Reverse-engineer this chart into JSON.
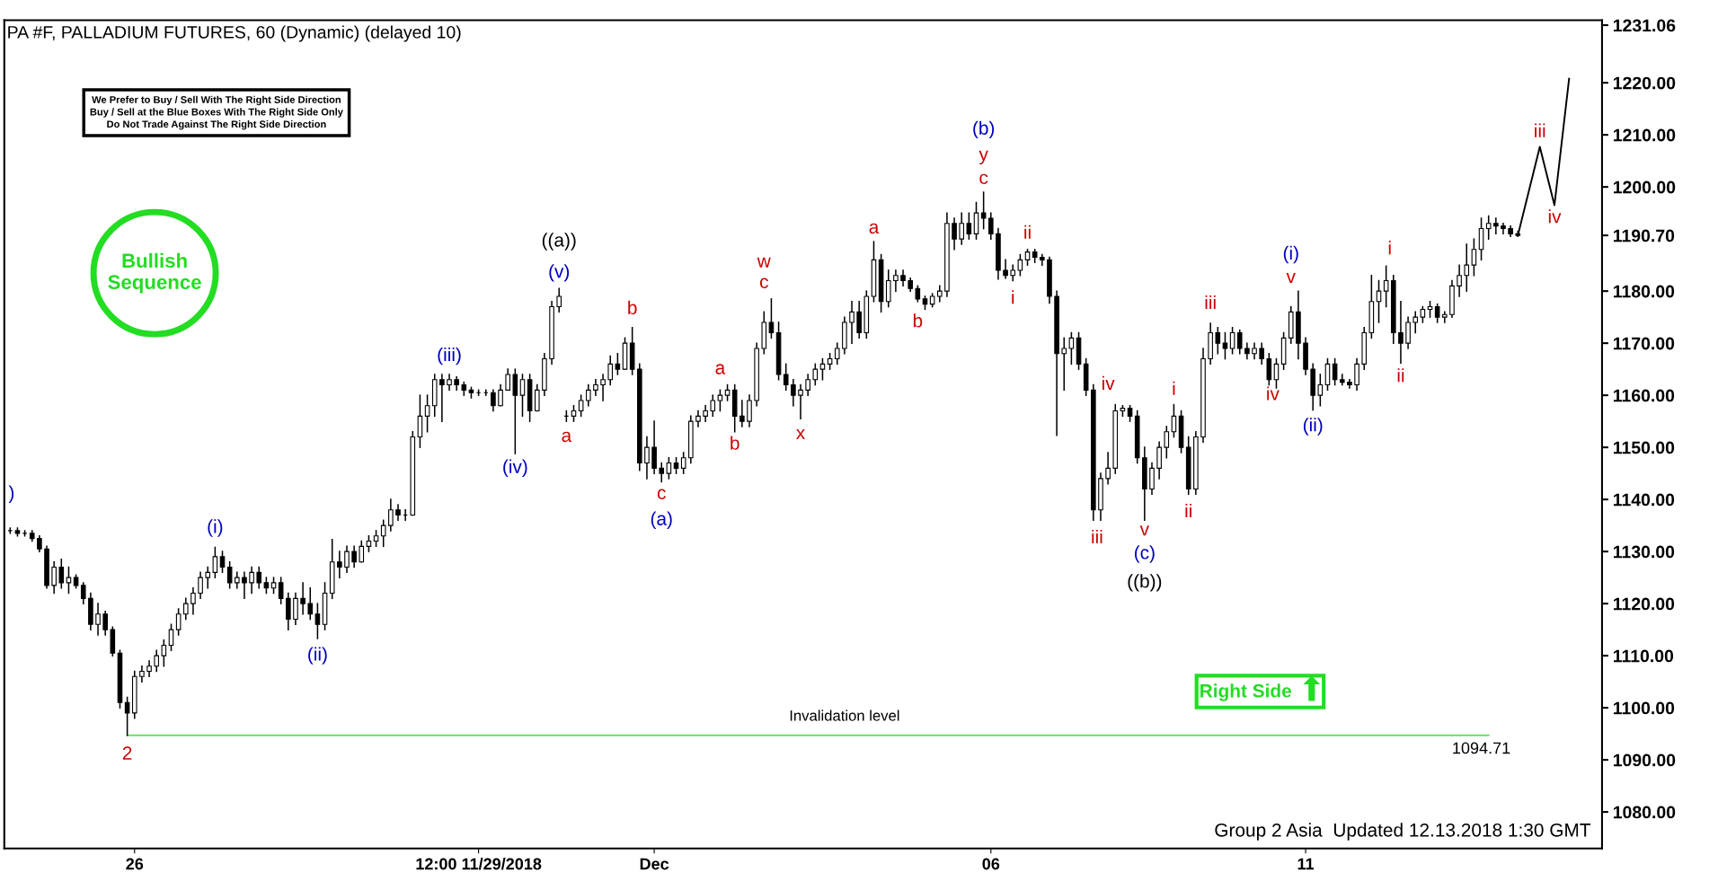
{
  "chart_data": {
    "type": "candlestick",
    "title": "PA #F, PALLADIUM FUTURES, 60 (Dynamic) (delayed 10)",
    "color": "#000000",
    "categories": [
      null,
      null,
      null,
      null,
      null,
      null,
      null,
      null,
      null,
      null,
      null,
      null,
      null,
      null,
      null,
      null,
      null,
      "26",
      null,
      null,
      null,
      null,
      null,
      null,
      null,
      null,
      null,
      null,
      null,
      null,
      null,
      null,
      null,
      null,
      null,
      null,
      null,
      null,
      null,
      null,
      null,
      null,
      null,
      null,
      null,
      null,
      null,
      null,
      null,
      null,
      null,
      null,
      null,
      null,
      null,
      null,
      null,
      null,
      null,
      null,
      null,
      null,
      null,
      null,
      "12:00 11/29/2018",
      null,
      null,
      null,
      null,
      null,
      null,
      null,
      null,
      null,
      null,
      null,
      null,
      null,
      null,
      null,
      null,
      null,
      null,
      null,
      null,
      null,
      null,
      null,
      "Dec",
      null,
      null,
      null,
      null,
      null,
      null,
      null,
      null,
      null,
      null,
      null,
      null,
      null,
      null,
      null,
      null,
      null,
      null,
      null,
      null,
      null,
      null,
      null,
      null,
      null,
      null,
      null,
      null,
      null,
      null,
      null,
      null,
      null,
      null,
      null,
      null,
      null,
      null,
      null,
      null,
      null,
      null,
      null,
      null,
      null,
      "06",
      null,
      null,
      null,
      null,
      null,
      null,
      null,
      null,
      null,
      null,
      null,
      null,
      null,
      null,
      null,
      null,
      null,
      null,
      null,
      null,
      null,
      null,
      null,
      null,
      null,
      null,
      null,
      null,
      null,
      null,
      null,
      null,
      null,
      null,
      null,
      null,
      null,
      null,
      null,
      null,
      null,
      null,
      "11",
      null,
      null,
      null,
      null,
      null,
      null,
      null,
      null,
      null,
      null,
      null,
      null,
      null,
      null,
      null,
      null,
      null,
      null,
      null,
      null,
      null,
      null,
      null,
      null,
      null,
      null,
      null,
      null,
      null,
      null,
      null,
      null,
      null,
      null,
      null,
      null,
      null,
      null,
      null,
      null
    ],
    "ohlc": [
      [
        1134,
        1134.5,
        1133.5,
        1134
      ],
      [
        1134,
        1134.5,
        1133,
        1133.5
      ],
      [
        1133.5,
        1134,
        1133,
        1133.5
      ],
      [
        1133.5,
        1134,
        1132,
        1132.5
      ],
      [
        1132.5,
        1133,
        1130,
        1130.5
      ],
      [
        1130.5,
        1131,
        1123,
        1123.5
      ],
      [
        1123.5,
        1128,
        1122,
        1127
      ],
      [
        1127,
        1128.5,
        1123,
        1124
      ],
      [
        1124,
        1127,
        1122,
        1125
      ],
      [
        1125,
        1125.5,
        1123,
        1123.5
      ],
      [
        1123.5,
        1124,
        1120,
        1121
      ],
      [
        1121,
        1122,
        1115,
        1116
      ],
      [
        1116,
        1120,
        1114,
        1118
      ],
      [
        1118,
        1118.5,
        1114,
        1115
      ],
      [
        1115,
        1115.5,
        1110,
        1110.5
      ],
      [
        1110.5,
        1111,
        1100,
        1101
      ],
      [
        1101,
        1102,
        1094.71,
        1099
      ],
      [
        1099,
        1107,
        1098,
        1106
      ],
      [
        1106,
        1108,
        1105,
        1107
      ],
      [
        1107,
        1109,
        1106,
        1108
      ],
      [
        1108,
        1111,
        1107,
        1110
      ],
      [
        1110,
        1113,
        1108,
        1112
      ],
      [
        1112,
        1116,
        1111,
        1115
      ],
      [
        1115,
        1119,
        1114,
        1118
      ],
      [
        1118,
        1121,
        1117,
        1120
      ],
      [
        1120,
        1123,
        1118,
        1122
      ],
      [
        1122,
        1126,
        1121,
        1125
      ],
      [
        1125,
        1127,
        1123,
        1126
      ],
      [
        1126,
        1130.8,
        1125,
        1129
      ],
      [
        1129,
        1130,
        1126,
        1127
      ],
      [
        1127,
        1128,
        1123,
        1124
      ],
      [
        1124,
        1126,
        1123,
        1125
      ],
      [
        1125,
        1126,
        1121,
        1124
      ],
      [
        1124,
        1127,
        1122,
        1126
      ],
      [
        1126,
        1127,
        1123,
        1124
      ],
      [
        1124,
        1125,
        1122,
        1123
      ],
      [
        1123,
        1125,
        1122,
        1124
      ],
      [
        1124,
        1125,
        1120,
        1121
      ],
      [
        1121,
        1122,
        1115,
        1117
      ],
      [
        1117,
        1122,
        1116,
        1121
      ],
      [
        1121,
        1124,
        1118,
        1120
      ],
      [
        1120,
        1123,
        1117,
        1118
      ],
      [
        1118,
        1120,
        1113.3,
        1116
      ],
      [
        1116,
        1124,
        1115,
        1122
      ],
      [
        1122,
        1132.3,
        1121,
        1128
      ],
      [
        1128,
        1130,
        1125,
        1127
      ],
      [
        1127,
        1131,
        1126,
        1130
      ],
      [
        1130,
        1131,
        1127,
        1128
      ],
      [
        1128,
        1132,
        1128,
        1131
      ],
      [
        1131,
        1133,
        1130,
        1132
      ],
      [
        1132,
        1134,
        1131,
        1133
      ],
      [
        1133,
        1136,
        1131,
        1135
      ],
      [
        1135,
        1140,
        1134,
        1138
      ],
      [
        1138,
        1139,
        1136,
        1137
      ],
      [
        1137,
        1138,
        1136,
        1137
      ],
      [
        1137,
        1153,
        1137,
        1152
      ],
      [
        1152,
        1160,
        1150,
        1156
      ],
      [
        1156,
        1160,
        1153,
        1158
      ],
      [
        1158,
        1164,
        1156,
        1163
      ],
      [
        1163,
        1164,
        1155,
        1162
      ],
      [
        1162,
        1164,
        1161,
        1163
      ],
      [
        1163,
        1163.5,
        1161,
        1162
      ],
      [
        1162,
        1162.5,
        1160,
        1161
      ],
      [
        1161,
        1161.5,
        1159.5,
        1160.5
      ],
      [
        1160.5,
        1161,
        1160,
        1160.5
      ],
      [
        1160.5,
        1161,
        1160,
        1160.5
      ],
      [
        1160.5,
        1161,
        1157,
        1158
      ],
      [
        1158,
        1162,
        1158,
        1161
      ],
      [
        1161,
        1165,
        1161,
        1164
      ],
      [
        1164,
        1165,
        1148.8,
        1160
      ],
      [
        1160,
        1164,
        1156,
        1163
      ],
      [
        1163,
        1164,
        1155,
        1157
      ],
      [
        1157,
        1162,
        1157,
        1161
      ],
      [
        1161,
        1168,
        1160,
        1167
      ],
      [
        1167,
        1178,
        1166,
        1177
      ],
      [
        1177,
        1180.5,
        1176,
        1179
      ],
      [
        1156,
        1157,
        1155,
        1156
      ],
      [
        1156,
        1158,
        1155,
        1157
      ],
      [
        1157,
        1160,
        1156,
        1159
      ],
      [
        1159,
        1162,
        1158,
        1161
      ],
      [
        1161,
        1163,
        1160,
        1162
      ],
      [
        1162,
        1164,
        1159,
        1163
      ],
      [
        1163,
        1167.5,
        1162,
        1166
      ],
      [
        1166,
        1168,
        1164,
        1165
      ],
      [
        1165,
        1171,
        1165,
        1170
      ],
      [
        1170,
        1173,
        1164,
        1165
      ],
      [
        1165,
        1166,
        1145.6,
        1147
      ],
      [
        1147,
        1152,
        1144,
        1150
      ],
      [
        1150,
        1155,
        1145,
        1146
      ],
      [
        1146,
        1147,
        1143.4,
        1145
      ],
      [
        1145,
        1148,
        1144,
        1147
      ],
      [
        1147,
        1148,
        1145,
        1146
      ],
      [
        1146,
        1149,
        1145,
        1148
      ],
      [
        1148,
        1156,
        1147,
        1155
      ],
      [
        1155,
        1157,
        1154,
        1156
      ],
      [
        1156,
        1158,
        1155,
        1157
      ],
      [
        1157,
        1160,
        1156,
        1159
      ],
      [
        1159,
        1161,
        1157,
        1160
      ],
      [
        1160,
        1162,
        1159,
        1161
      ],
      [
        1161,
        1162,
        1153,
        1156
      ],
      [
        1156,
        1159,
        1154,
        1155
      ],
      [
        1155,
        1160,
        1154,
        1159
      ],
      [
        1159,
        1170,
        1158,
        1169
      ],
      [
        1169,
        1176,
        1168,
        1174
      ],
      [
        1174,
        1178.5,
        1171,
        1172
      ],
      [
        1172,
        1174,
        1163,
        1164
      ],
      [
        1164,
        1166,
        1161,
        1162
      ],
      [
        1162,
        1163,
        1158,
        1160
      ],
      [
        1160,
        1162,
        1155.5,
        1161
      ],
      [
        1161,
        1164,
        1160,
        1163
      ],
      [
        1163,
        1166,
        1162,
        1165
      ],
      [
        1165,
        1167,
        1163,
        1166
      ],
      [
        1166,
        1168,
        1165,
        1167
      ],
      [
        1167,
        1170,
        1166,
        1169
      ],
      [
        1169,
        1175,
        1168,
        1174
      ],
      [
        1174,
        1178,
        1170,
        1176
      ],
      [
        1176,
        1178,
        1171,
        1172
      ],
      [
        1172,
        1180,
        1171,
        1179
      ],
      [
        1179,
        1189.5,
        1178,
        1186
      ],
      [
        1186,
        1187,
        1176,
        1178
      ],
      [
        1178,
        1184,
        1177,
        1182
      ],
      [
        1182,
        1184,
        1180,
        1183
      ],
      [
        1183,
        1184,
        1181,
        1182
      ],
      [
        1182,
        1182.5,
        1180,
        1180.5
      ],
      [
        1180.5,
        1181,
        1178,
        1178.5
      ],
      [
        1178.5,
        1179,
        1176.5,
        1177.5
      ],
      [
        1177.5,
        1179.5,
        1177,
        1179
      ],
      [
        1179,
        1181,
        1178,
        1180
      ],
      [
        1180,
        1195,
        1179,
        1193
      ],
      [
        1193,
        1194,
        1188,
        1190
      ],
      [
        1190,
        1195,
        1189,
        1193
      ],
      [
        1193,
        1195,
        1190,
        1191
      ],
      [
        1191,
        1197,
        1190,
        1195
      ],
      [
        1195,
        1199,
        1192,
        1194
      ],
      [
        1194,
        1195,
        1190,
        1191
      ],
      [
        1191,
        1192,
        1182.3,
        1184
      ],
      [
        1184,
        1186,
        1182.5,
        1183
      ],
      [
        1183,
        1185,
        1182,
        1184
      ],
      [
        1184,
        1187,
        1183,
        1186
      ],
      [
        1186,
        1188,
        1185,
        1187.5
      ],
      [
        1187.5,
        1188,
        1185.5,
        1186.5
      ],
      [
        1186.5,
        1187,
        1185,
        1186
      ],
      [
        1186,
        1186.5,
        1177.7,
        1179
      ],
      [
        1179,
        1180,
        1152.3,
        1168
      ],
      [
        1168,
        1171,
        1161,
        1169
      ],
      [
        1169,
        1172,
        1166,
        1171
      ],
      [
        1171,
        1172,
        1165,
        1166
      ],
      [
        1166,
        1167,
        1160,
        1161
      ],
      [
        1161,
        1162,
        1136,
        1138
      ],
      [
        1138,
        1145,
        1136,
        1144
      ],
      [
        1144,
        1149,
        1143,
        1146
      ],
      [
        1146,
        1158.2,
        1145,
        1157
      ],
      [
        1157,
        1158,
        1156,
        1157.5
      ],
      [
        1157.5,
        1158,
        1155,
        1156
      ],
      [
        1156,
        1157,
        1147,
        1148
      ],
      [
        1148,
        1150,
        1136,
        1142
      ],
      [
        1142,
        1147,
        1141,
        1146
      ],
      [
        1146,
        1151,
        1144,
        1150
      ],
      [
        1150,
        1154,
        1148,
        1153
      ],
      [
        1153,
        1158.2,
        1152,
        1156
      ],
      [
        1156,
        1157,
        1149,
        1150
      ],
      [
        1150,
        1152,
        1141,
        1142
      ],
      [
        1142,
        1153,
        1141,
        1152
      ],
      [
        1152,
        1169,
        1151,
        1167
      ],
      [
        1167,
        1173.8,
        1166,
        1172
      ],
      [
        1172,
        1173,
        1168,
        1170
      ],
      [
        1170,
        1172,
        1167,
        1169
      ],
      [
        1169,
        1173,
        1168,
        1172
      ],
      [
        1172,
        1172.5,
        1168,
        1169
      ],
      [
        1169,
        1170,
        1167,
        1168
      ],
      [
        1168,
        1170,
        1167,
        1169
      ],
      [
        1169,
        1170,
        1166,
        1167
      ],
      [
        1167,
        1168,
        1162,
        1163
      ],
      [
        1163,
        1167,
        1161.4,
        1166
      ],
      [
        1166,
        1172,
        1165,
        1171
      ],
      [
        1171,
        1177,
        1170,
        1176
      ],
      [
        1176,
        1180,
        1167,
        1170
      ],
      [
        1170,
        1171,
        1164,
        1165
      ],
      [
        1165,
        1166,
        1157.2,
        1160
      ],
      [
        1160,
        1164,
        1158,
        1162
      ],
      [
        1162,
        1167,
        1161,
        1166
      ],
      [
        1166,
        1167,
        1162,
        1163
      ],
      [
        1163,
        1164,
        1162,
        1162.5
      ],
      [
        1162.5,
        1163,
        1161.4,
        1162
      ],
      [
        1162,
        1167,
        1161,
        1166
      ],
      [
        1166,
        1173,
        1165,
        1172
      ],
      [
        1172,
        1183,
        1171,
        1178
      ],
      [
        1178,
        1182,
        1174,
        1180
      ],
      [
        1180,
        1184.8,
        1177,
        1182
      ],
      [
        1182,
        1183,
        1170,
        1172
      ],
      [
        1172,
        1178,
        1166.2,
        1170
      ],
      [
        1170,
        1175,
        1169,
        1174
      ],
      [
        1174,
        1176,
        1172,
        1175
      ],
      [
        1175,
        1177,
        1174,
        1176.5
      ],
      [
        1176.5,
        1178,
        1175,
        1177
      ],
      [
        1177,
        1177.5,
        1174,
        1175
      ],
      [
        1175,
        1176,
        1174,
        1175.5
      ],
      [
        1175.5,
        1182,
        1175,
        1181
      ],
      [
        1181,
        1185,
        1179,
        1183
      ],
      [
        1183,
        1189,
        1180,
        1185
      ],
      [
        1185,
        1190,
        1183,
        1188
      ],
      [
        1188,
        1194,
        1186,
        1192
      ],
      [
        1192,
        1194.4,
        1190,
        1193
      ],
      [
        1193,
        1194,
        1191,
        1192.5
      ],
      [
        1192.5,
        1193,
        1191,
        1192
      ],
      [
        1192,
        1192.5,
        1190.5,
        1191
      ],
      [
        1191,
        1191.5,
        1190.5,
        1190.7
      ],
      null,
      null,
      null,
      null,
      null,
      null,
      null,
      null,
      null,
      null,
      null
    ],
    "series": [
      {
        "type": "line",
        "color": "#000000",
        "values": [
          null,
          null,
          null,
          null,
          null,
          null,
          null,
          null,
          null,
          null,
          null,
          null,
          null,
          null,
          null,
          null,
          null,
          null,
          null,
          null,
          null,
          null,
          null,
          null,
          null,
          null,
          null,
          null,
          null,
          null,
          null,
          null,
          null,
          null,
          null,
          null,
          null,
          null,
          null,
          null,
          null,
          null,
          null,
          null,
          null,
          null,
          null,
          null,
          null,
          null,
          null,
          null,
          null,
          null,
          null,
          null,
          null,
          null,
          null,
          null,
          null,
          null,
          null,
          null,
          null,
          null,
          null,
          null,
          null,
          null,
          null,
          null,
          null,
          null,
          null,
          null,
          null,
          null,
          null,
          null,
          null,
          null,
          null,
          null,
          null,
          null,
          null,
          null,
          null,
          null,
          null,
          null,
          null,
          null,
          null,
          null,
          null,
          null,
          null,
          null,
          null,
          null,
          null,
          null,
          null,
          null,
          null,
          null,
          null,
          null,
          null,
          null,
          null,
          null,
          null,
          null,
          null,
          null,
          null,
          null,
          null,
          null,
          null,
          null,
          null,
          null,
          null,
          null,
          null,
          null,
          null,
          null,
          null,
          null,
          null,
          null,
          null,
          null,
          null,
          null,
          null,
          null,
          null,
          null,
          null,
          null,
          null,
          null,
          null,
          null,
          null,
          null,
          null,
          null,
          null,
          null,
          null,
          null,
          null,
          null,
          null,
          null,
          null,
          null,
          null,
          null,
          null,
          null,
          null,
          null,
          null,
          null,
          null,
          null,
          null,
          null,
          null,
          null,
          null,
          null,
          null,
          null,
          null,
          null,
          null,
          null,
          null,
          null,
          null,
          null,
          null,
          null,
          null,
          null,
          null,
          null,
          null,
          null,
          null,
          null,
          null,
          null,
          null,
          null,
          null,
          null,
          1190.7,
          null,
          null,
          1207.7,
          null,
          1196.5,
          null,
          1220.8,
          null,
          null,
          null,
          null
        ]
      }
    ],
    "ref_lines": [
      {
        "axis": "y",
        "value": 1094.71,
        "label": "Invalidation level",
        "color": "#66e066"
      }
    ],
    "ylim": [
      1073,
      1232
    ],
    "yticks": [
      {
        "value": 1080,
        "label": "1080.00"
      },
      {
        "value": 1090,
        "label": "1090.00"
      },
      {
        "value": 1100,
        "label": "1100.00"
      },
      {
        "value": 1110,
        "label": "1110.00"
      },
      {
        "value": 1120,
        "label": "1120.00"
      },
      {
        "value": 1130,
        "label": "1130.00"
      },
      {
        "value": 1140,
        "label": "1140.00"
      },
      {
        "value": 1150,
        "label": "1150.00"
      },
      {
        "value": 1160,
        "label": "1160.00"
      },
      {
        "value": 1170,
        "label": "1170.00"
      },
      {
        "value": 1180,
        "label": "1180.00"
      },
      {
        "value": 1190.7,
        "label": "1190.70"
      },
      {
        "value": 1200,
        "label": "1200.00"
      },
      {
        "value": 1210,
        "label": "1210.00"
      },
      {
        "value": 1220,
        "label": "1220.00"
      },
      {
        "value": 1231.06,
        "label": "1231.06"
      }
    ],
    "grid": false,
    "legend": false,
    "annotations": [
      "We Prefer to Buy / Sell With The Right Side Direction\nBuy / Sell at the Blue Boxes With The Right Side Only\nDo Not Trade Against The Right Side Direction",
      "Bullish\nSequence",
      "Right Side",
      "Group 2 Asia  Updated 12.13.2018 1:30 GMT",
      ")",
      "2",
      "(i)",
      "(ii)",
      "(iii)",
      "(iv)",
      "(v)",
      "((a))",
      "a",
      "b",
      "c",
      "(a)",
      "a",
      "b",
      "c",
      "w",
      "x",
      "a",
      "b",
      "c",
      "y",
      "(b)",
      "i",
      "ii",
      "iii",
      "iv",
      "v",
      "(c)",
      "((b))",
      "i",
      "ii",
      "iii",
      "iv",
      "v",
      "(i)",
      "(ii)",
      "i",
      "ii",
      "iii",
      "iv",
      "1094.71"
    ]
  }
}
